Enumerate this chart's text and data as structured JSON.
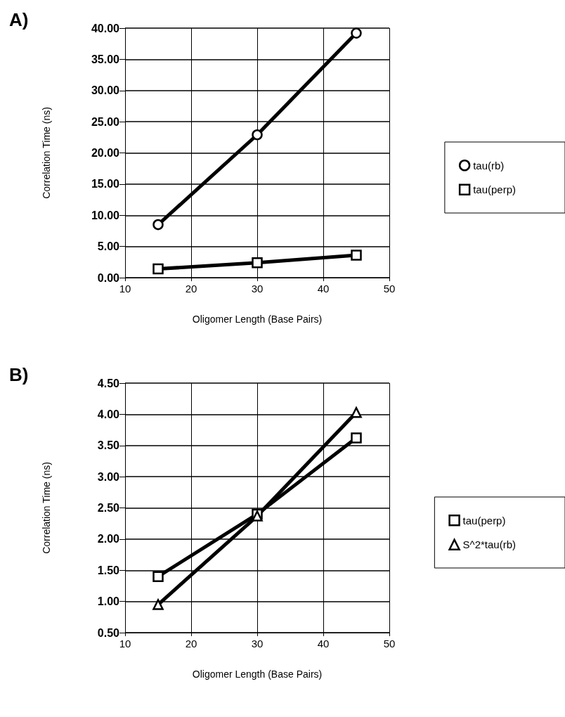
{
  "chart_data": [
    {
      "type": "line",
      "title": "A)",
      "xlabel": "Oligomer Length (Base Pairs)",
      "ylabel": "Correlation Time (ns)",
      "x": [
        15,
        30,
        45
      ],
      "series": [
        {
          "name": "tau(rb)",
          "color": "#000000",
          "marker": "circle",
          "values": [
            8.5,
            22.9,
            39.2
          ]
        },
        {
          "name": "tau(perp)",
          "color": "#000000",
          "marker": "square",
          "values": [
            1.4,
            2.4,
            3.6
          ]
        }
      ],
      "xlim": [
        10,
        50
      ],
      "xticks": [
        10,
        20,
        30,
        40,
        50
      ],
      "ylim": [
        0,
        40
      ],
      "yticks": [
        {
          "value": 0,
          "label": "0.00"
        },
        {
          "value": 5,
          "label": "5.00"
        },
        {
          "value": 10,
          "label": "10.00"
        },
        {
          "value": 15,
          "label": "15.00"
        },
        {
          "value": 20,
          "label": "20.00"
        },
        {
          "value": 25,
          "label": "25.00"
        },
        {
          "value": 30,
          "label": "30.00"
        },
        {
          "value": 35,
          "label": "35.00"
        },
        {
          "value": 40,
          "label": "40.00"
        }
      ],
      "grid": true,
      "legend": "right",
      "line_style": "solid"
    },
    {
      "type": "line",
      "title": "B)",
      "xlabel": "Oligomer Length (Base Pairs)",
      "ylabel": "Correlation Time (ns)",
      "x": [
        15,
        30,
        45
      ],
      "series": [
        {
          "name": "tau(perp)",
          "color": "#000000",
          "marker": "square",
          "values": [
            1.4,
            2.4,
            3.62
          ]
        },
        {
          "name": "S^2*tau(rb)",
          "color": "#000000",
          "marker": "triangle",
          "values": [
            0.95,
            2.37,
            4.03
          ]
        }
      ],
      "xlim": [
        10,
        50
      ],
      "xticks": [
        10,
        20,
        30,
        40,
        50
      ],
      "ylim": [
        0.5,
        4.5
      ],
      "yticks": [
        {
          "value": 0.5,
          "label": "0.50"
        },
        {
          "value": 1,
          "label": "1.00"
        },
        {
          "value": 1.5,
          "label": "1.50"
        },
        {
          "value": 2,
          "label": "2.00"
        },
        {
          "value": 2.5,
          "label": "2.50"
        },
        {
          "value": 3,
          "label": "3.00"
        },
        {
          "value": 3.5,
          "label": "3.50"
        },
        {
          "value": 4,
          "label": "4.00"
        },
        {
          "value": 4.5,
          "label": "4.50"
        }
      ],
      "grid": true,
      "legend": "right",
      "line_style": "solid"
    }
  ]
}
